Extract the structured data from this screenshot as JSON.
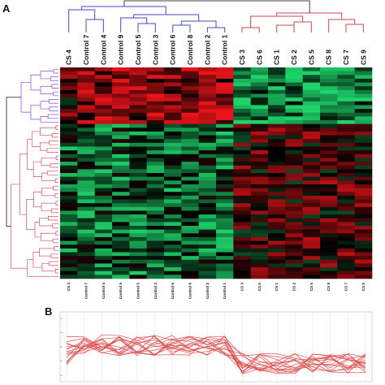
{
  "panels": {
    "a": "A",
    "b": "B"
  },
  "samples": [
    "CS 4",
    "Control 7",
    "Control 4",
    "Control 9",
    "Control 5",
    "Control 3",
    "Control 6",
    "Control 8",
    "Control 2",
    "Control 1",
    "CS 3",
    "CS 6",
    "CS 1",
    "CS 2",
    "CS 5",
    "CS 8",
    "CS 7",
    "CS 9"
  ],
  "groups": {
    "control": {
      "count": 10,
      "color": "#4a4ab8"
    },
    "cs": {
      "count": 8,
      "color": "#c94a5a"
    }
  },
  "colors": {
    "high": "#e8141a",
    "low": "#1ed36a",
    "mid": "#000000",
    "row_cluster_top": "#8a4ad0",
    "row_cluster_bottom": "#d2506a",
    "profile_line": "#d84a4a",
    "profile_axis": "#bbbbbb"
  },
  "heatmap": {
    "rows": 56,
    "up_rows": 15
  }
}
